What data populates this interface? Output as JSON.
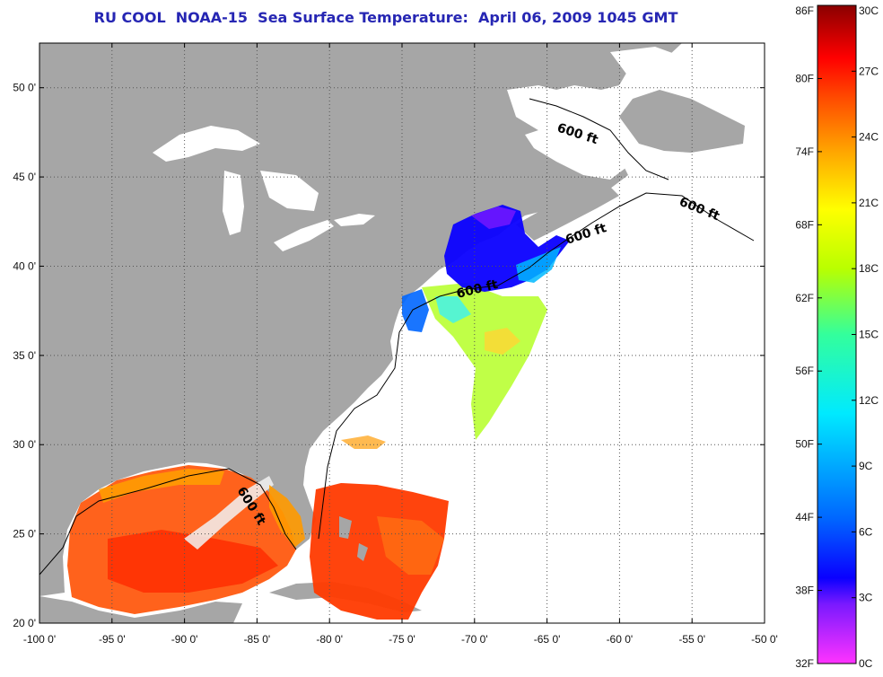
{
  "title": "RU COOL  NOAA-15  Sea Surface Temperature:  April 06, 2009 1045 GMT",
  "map": {
    "lon_range": [
      -100,
      -50
    ],
    "lat_range": [
      20,
      52.5
    ],
    "lon_ticks": [
      "-100 0'",
      "-95 0'",
      "-90 0'",
      "-85 0'",
      "-80 0'",
      "-75 0'",
      "-70 0'",
      "-65 0'",
      "-60 0'",
      "-55 0'",
      "-50 0'"
    ],
    "lat_ticks": [
      "20 0'",
      "25 0'",
      "30 0'",
      "35 0'",
      "40 0'",
      "45 0'",
      "50 0'"
    ],
    "grid": "dotted",
    "land_color": "#a6a6a6",
    "nodata_color": "#ffffff",
    "contour_labels": [
      "600 ft",
      "600 ft",
      "600 ft",
      "600 ft",
      "600 ft"
    ]
  },
  "colorbar": {
    "fahrenheit_labels": [
      "86F",
      "80F",
      "74F",
      "68F",
      "62F",
      "56F",
      "50F",
      "44F",
      "38F",
      "32F"
    ],
    "celsius_labels": [
      "30C",
      "27C",
      "24C",
      "21C",
      "18C",
      "15C",
      "12C",
      "9C",
      "6C",
      "3C",
      "0C"
    ],
    "range_c": [
      0,
      30
    ],
    "colors": [
      "#ff33ff",
      "#7a19ff",
      "#0a00ff",
      "#0066ff",
      "#00eaff",
      "#33ff9c",
      "#b9ff00",
      "#ffff00",
      "#ffa300",
      "#ff4a00",
      "#ff0000",
      "#8a0000"
    ]
  }
}
